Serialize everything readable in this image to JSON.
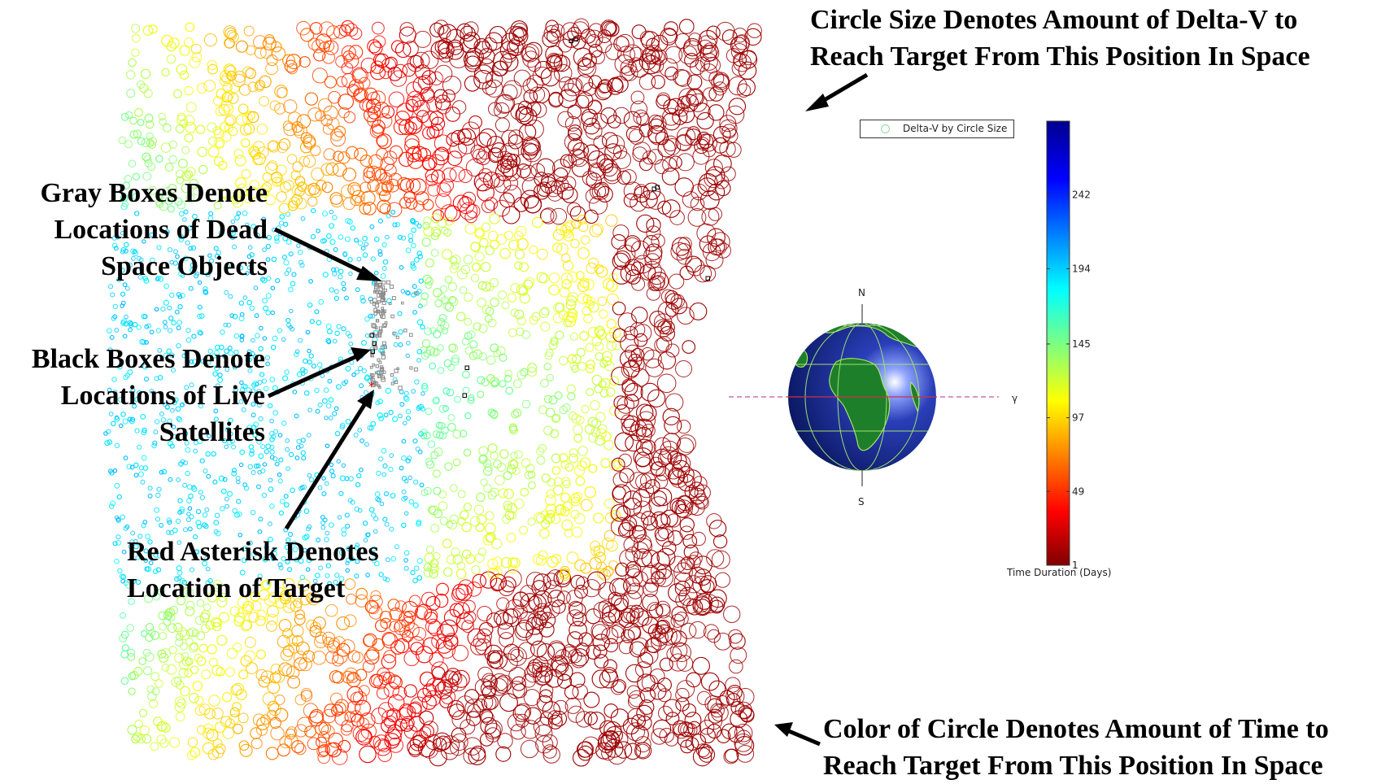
{
  "annotations": {
    "circle_size": [
      "Circle Size Denotes Amount of Delta-V to",
      "Reach Target From This Position In Space"
    ],
    "gray_boxes": [
      "Gray Boxes Denote",
      "Locations of Dead",
      "Space Objects"
    ],
    "black_boxes": [
      "Black Boxes Denote",
      "Locations of Live",
      "Satellites"
    ],
    "red_asterisk": [
      "Red Asterisk Denotes",
      "Location of Target"
    ],
    "circle_color": [
      "Color of Circle Denotes Amount of Time to",
      "Reach Target From This Position In Space"
    ]
  },
  "chart_data": {
    "type": "scatter",
    "title": "",
    "legend": {
      "entries": [
        "Delta-V by Circle Size"
      ],
      "placement": "top-right"
    },
    "colorbar": {
      "label": "Time Duration (Days)",
      "ticks": [
        1,
        49,
        97,
        145,
        194,
        242
      ],
      "range": [
        1,
        290
      ],
      "colormap": "jet"
    },
    "globe_labels": {
      "north": "N",
      "south": "S",
      "vernal_equinox": "γ"
    },
    "marker_types": [
      "circle",
      "gray-box",
      "black-box",
      "red-asterisk"
    ],
    "grid": false,
    "axes_visible": false
  },
  "colors": {
    "background": "#ffffff",
    "globe_ocean": "#1a2d8f",
    "globe_land": "#1e7f2a",
    "equator_line": "#cc3366",
    "legend_marker": "#8fd9a0"
  }
}
